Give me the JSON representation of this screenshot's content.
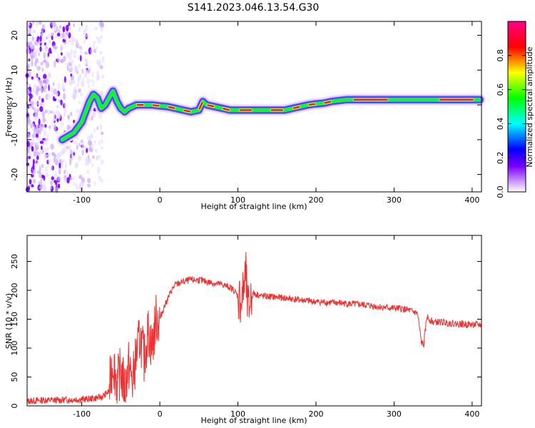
{
  "title": "S141.2023.046.13.54.G30",
  "colors": {
    "snr_line": "#ee3030",
    "colorbar": [
      "#ffffff",
      "#8800ff",
      "#0000ff",
      "#00ffff",
      "#00ff00",
      "#ffff00",
      "#ff0000",
      "#ff0088"
    ]
  },
  "chart_data": [
    {
      "type": "heatmap",
      "title": "S141.2023.046.13.54.G30",
      "xlabel": "Height of straight line (km)",
      "ylabel": "Frequency (Hz)",
      "xlim": [
        -170,
        412
      ],
      "ylim": [
        -25,
        24
      ],
      "xticks": [
        -100,
        0,
        100,
        200,
        300,
        400
      ],
      "yticks": [
        -20,
        -10,
        0,
        10,
        20
      ],
      "grid": false,
      "colorbar": {
        "label": "Normalized spectral amplitude",
        "range": [
          0,
          1
        ],
        "ticks": [
          0.0,
          0.2,
          0.4,
          0.6,
          0.8
        ]
      },
      "ridge": {
        "x": [
          -125,
          -110,
          -100,
          -95,
          -90,
          -85,
          -80,
          -75,
          -70,
          -65,
          -60,
          -55,
          -50,
          -45,
          -40,
          -30,
          -20,
          -10,
          0,
          10,
          20,
          30,
          40,
          50,
          55,
          60,
          70,
          80,
          90,
          100,
          120,
          140,
          160,
          170,
          180,
          190,
          200,
          210,
          220,
          240,
          300,
          350,
          410
        ],
        "y": [
          -10,
          -8,
          -5,
          -2,
          1,
          3,
          2,
          -1,
          0,
          2,
          4,
          1,
          -1,
          -2,
          -1,
          0,
          0,
          0,
          -0.3,
          -0.5,
          -1,
          -1.5,
          -2,
          -1.5,
          1,
          0,
          -0.5,
          -1,
          -1.5,
          -1.5,
          -1.5,
          -1.5,
          -1.5,
          -1,
          -0.5,
          0,
          0.3,
          0.5,
          1,
          1.5,
          1.5,
          1.5,
          1.5
        ]
      },
      "noise_region_x": [
        -170,
        -100
      ]
    },
    {
      "type": "line",
      "xlabel": "Height of straight line (km)",
      "ylabel": "SNR (10 * v/v)",
      "xlim": [
        -170,
        412
      ],
      "ylim": [
        0,
        295
      ],
      "xticks": [
        -100,
        0,
        100,
        200,
        300,
        400
      ],
      "yticks": [
        0,
        50,
        100,
        150,
        200,
        250
      ],
      "grid": false,
      "series": [
        {
          "x": [
            -170,
            -150,
            -130,
            -110,
            -90,
            -75,
            -65,
            -60,
            -55,
            -50,
            -45,
            -40,
            -35,
            -30,
            -25,
            -20,
            -15,
            -10,
            -5,
            0,
            5,
            10,
            15,
            20,
            30,
            40,
            50,
            60,
            70,
            80,
            90,
            95,
            100,
            105,
            110,
            113,
            116,
            120,
            130,
            150,
            170,
            200,
            230,
            260,
            290,
            310,
            320,
            330,
            335,
            338,
            342,
            345,
            350,
            360,
            380,
            412
          ],
          "values": [
            8,
            10,
            10,
            11,
            12,
            15,
            25,
            80,
            40,
            60,
            30,
            70,
            40,
            90,
            120,
            80,
            130,
            100,
            150,
            150,
            170,
            185,
            200,
            210,
            215,
            218,
            218,
            215,
            212,
            210,
            205,
            200,
            190,
            180,
            230,
            160,
            185,
            195,
            190,
            188,
            185,
            180,
            178,
            175,
            170,
            168,
            165,
            160,
            110,
            105,
            155,
            150,
            145,
            145,
            142,
            140
          ]
        }
      ]
    }
  ]
}
